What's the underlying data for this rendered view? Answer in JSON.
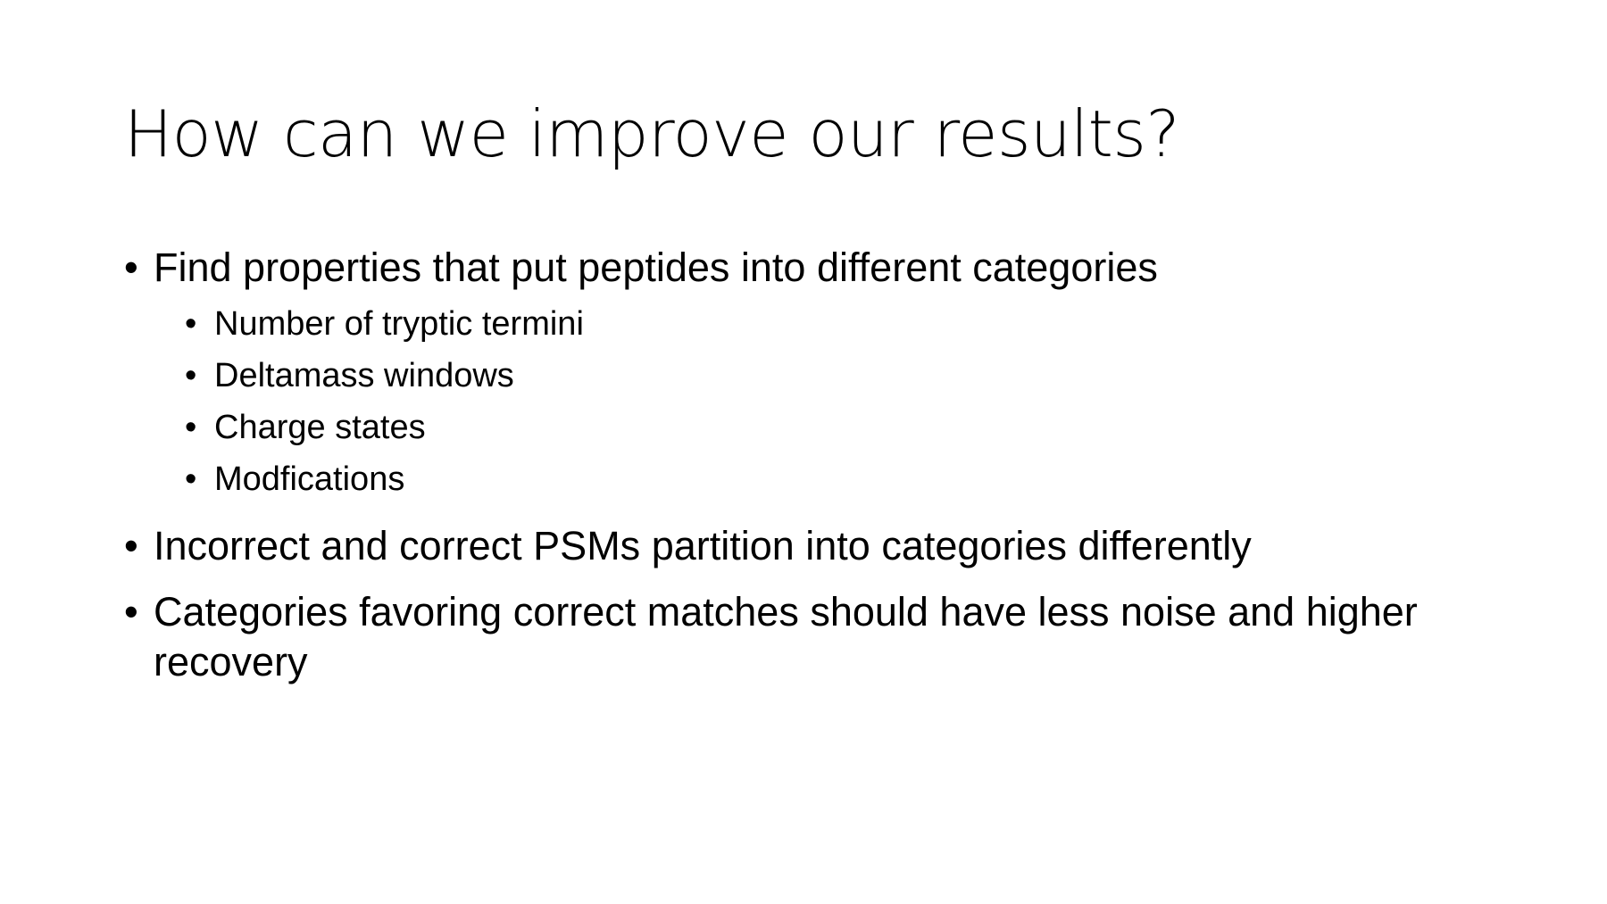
{
  "slide": {
    "title": "How can we improve our results?",
    "bullet_glyph": "•",
    "items": [
      {
        "text": "Find properties that put peptides into different categories",
        "subitems": [
          "Number of tryptic termini",
          "Deltamass windows",
          "Charge states",
          "Modfications"
        ]
      },
      {
        "text": "Incorrect and correct PSMs partition into categories differently"
      },
      {
        "text": "Categories favoring correct matches should have less noise and higher recovery"
      }
    ]
  }
}
